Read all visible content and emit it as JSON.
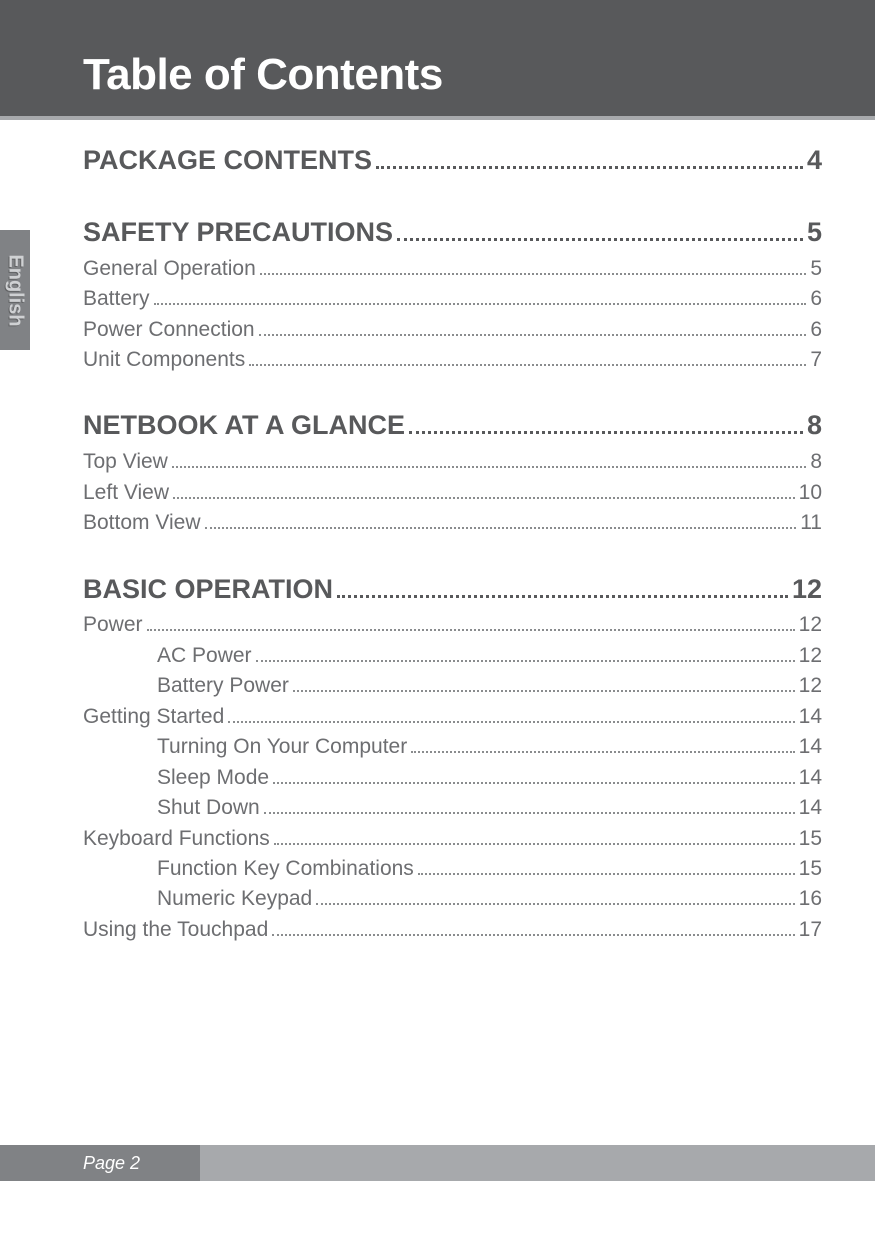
{
  "header": {
    "title": "Table of Contents"
  },
  "language_tab": "English",
  "footer": {
    "label": "Page 2"
  },
  "sections": [
    {
      "heading": {
        "label": "PACKAGE CONTENTS",
        "page": "4"
      },
      "items": []
    },
    {
      "heading": {
        "label": "SAFETY PRECAUTIONS",
        "page": "5"
      },
      "items": [
        {
          "label": "General Operation",
          "page": "5",
          "level": 1
        },
        {
          "label": "Battery",
          "page": "6",
          "level": 1
        },
        {
          "label": "Power Connection",
          "page": "6",
          "level": 1
        },
        {
          "label": "Unit Components",
          "page": "7",
          "level": 1
        }
      ]
    },
    {
      "heading": {
        "label": "NETBOOK AT A GLANCE",
        "page": "8"
      },
      "items": [
        {
          "label": "Top View",
          "page": "8",
          "level": 1
        },
        {
          "label": "Left View",
          "page": "10",
          "level": 1
        },
        {
          "label": "Bottom View",
          "page": "11",
          "level": 1
        }
      ]
    },
    {
      "heading": {
        "label": "BASIC OPERATION",
        "page": "12"
      },
      "items": [
        {
          "label": "Power",
          "page": "12",
          "level": 1
        },
        {
          "label": "AC  Power",
          "page": "12",
          "level": 2
        },
        {
          "label": "Battery Power",
          "page": "12",
          "level": 2
        },
        {
          "label": "Getting Started",
          "page": "14",
          "level": 1
        },
        {
          "label": "Turning On Your Computer",
          "page": "14",
          "level": 2
        },
        {
          "label": "Sleep Mode",
          "page": "14",
          "level": 2
        },
        {
          "label": "Shut Down",
          "page": "14",
          "level": 2
        },
        {
          "label": "Keyboard Functions",
          "page": "15",
          "level": 1
        },
        {
          "label": "Function Key Combinations",
          "page": "15",
          "level": 2
        },
        {
          "label": "Numeric Keypad",
          "page": "16",
          "level": 2
        },
        {
          "label": "Using the Touchpad",
          "page": "17",
          "level": 1
        }
      ]
    }
  ],
  "colors": {
    "header_bg": "#58595b",
    "header_underline": "#a7a9ac",
    "tab_bg": "#808285",
    "body_heading": "#58595b",
    "body_text": "#6d6e71",
    "footer_outer": "#a7a9ac",
    "footer_inner": "#808285"
  }
}
